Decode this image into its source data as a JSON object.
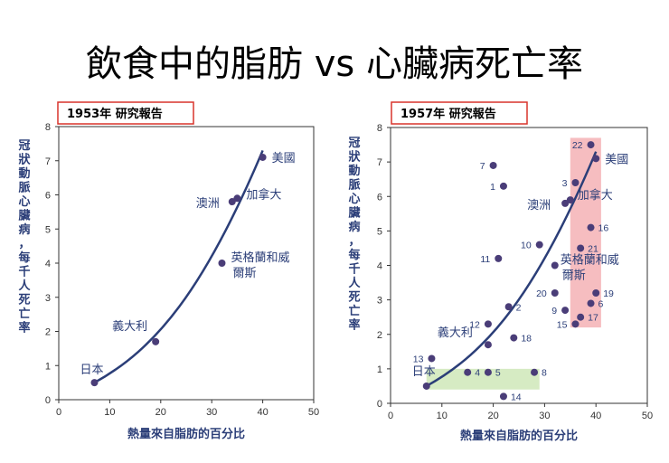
{
  "title": "飲食中的脂肪 vs 心臟病死亡率",
  "chart_data": [
    {
      "type": "scatter",
      "study_label": "1953年 研究報告",
      "xlabel": "熱量來自脂肪的百分比",
      "ylabel": "冠狀動脈心臟病，每千人死亡率",
      "xlim": [
        0,
        50
      ],
      "ylim": [
        0,
        8
      ],
      "xticks": [
        "0",
        "10",
        "20",
        "30",
        "40",
        "50"
      ],
      "yticks": [
        "0",
        "1",
        "2",
        "3",
        "4",
        "5",
        "6",
        "7",
        "8"
      ],
      "points": [
        {
          "x": 7,
          "y": 0.5,
          "label": "日本"
        },
        {
          "x": 19,
          "y": 1.7,
          "label": "義大利"
        },
        {
          "x": 32,
          "y": 4.0,
          "label": "英格蘭和威爾斯"
        },
        {
          "x": 34,
          "y": 5.8,
          "label": "澳洲"
        },
        {
          "x": 35,
          "y": 5.9,
          "label": "加拿大"
        },
        {
          "x": 40,
          "y": 7.1,
          "label": "美國"
        }
      ],
      "trend": [
        [
          7,
          0.5
        ],
        [
          19,
          1.7
        ],
        [
          32,
          4.0
        ],
        [
          40,
          7.3
        ]
      ]
    },
    {
      "type": "scatter",
      "study_label": "1957年 研究報告",
      "xlabel": "熱量來自脂肪的百分比",
      "ylabel": "冠狀動脈心臟病，每千人死亡率",
      "xlim": [
        0,
        50
      ],
      "ylim": [
        0,
        8
      ],
      "xticks": [
        "0",
        "10",
        "20",
        "30",
        "40",
        "50"
      ],
      "yticks": [
        "0",
        "1",
        "2",
        "3",
        "4",
        "5",
        "6",
        "7",
        "8"
      ],
      "points": [
        {
          "x": 7,
          "y": 0.5,
          "label": "日本"
        },
        {
          "x": 19,
          "y": 1.7,
          "label": "義大利"
        },
        {
          "x": 34,
          "y": 5.8,
          "label": "澳洲"
        },
        {
          "x": 35,
          "y": 5.9,
          "label": "加拿大"
        },
        {
          "x": 32,
          "y": 4.0,
          "label": "英格蘭和威爾斯"
        },
        {
          "x": 40,
          "y": 7.1,
          "label": "美國"
        },
        {
          "x": 22,
          "y": 6.3,
          "label": "1"
        },
        {
          "x": 23,
          "y": 2.8,
          "label": "2"
        },
        {
          "x": 36,
          "y": 6.4,
          "label": "3"
        },
        {
          "x": 15,
          "y": 0.9,
          "label": "4"
        },
        {
          "x": 19,
          "y": 0.9,
          "label": "5"
        },
        {
          "x": 39,
          "y": 2.9,
          "label": "6"
        },
        {
          "x": 20,
          "y": 6.9,
          "label": "7"
        },
        {
          "x": 28,
          "y": 0.9,
          "label": "8"
        },
        {
          "x": 34,
          "y": 2.7,
          "label": "9"
        },
        {
          "x": 29,
          "y": 4.6,
          "label": "10"
        },
        {
          "x": 21,
          "y": 4.2,
          "label": "11"
        },
        {
          "x": 19,
          "y": 2.3,
          "label": "12"
        },
        {
          "x": 8,
          "y": 1.3,
          "label": "13"
        },
        {
          "x": 22,
          "y": 0.2,
          "label": "14"
        },
        {
          "x": 36,
          "y": 2.3,
          "label": "15"
        },
        {
          "x": 39,
          "y": 5.1,
          "label": "16"
        },
        {
          "x": 37,
          "y": 2.5,
          "label": "17"
        },
        {
          "x": 24,
          "y": 1.9,
          "label": "18"
        },
        {
          "x": 40,
          "y": 3.2,
          "label": "19"
        },
        {
          "x": 32,
          "y": 3.2,
          "label": "20"
        },
        {
          "x": 37,
          "y": 4.5,
          "label": "21"
        },
        {
          "x": 39,
          "y": 7.5,
          "label": "22"
        }
      ],
      "trend": [
        [
          7,
          0.5
        ],
        [
          19,
          1.7
        ],
        [
          32,
          4.0
        ],
        [
          40,
          7.3
        ]
      ],
      "highlights": [
        {
          "x0": 7,
          "x1": 29,
          "y0": 0.4,
          "y1": 1.0,
          "color": "#cfe8b8"
        },
        {
          "x0": 35,
          "x1": 41,
          "y0": 2.2,
          "y1": 7.7,
          "color": "#f5b1b5"
        }
      ]
    }
  ]
}
